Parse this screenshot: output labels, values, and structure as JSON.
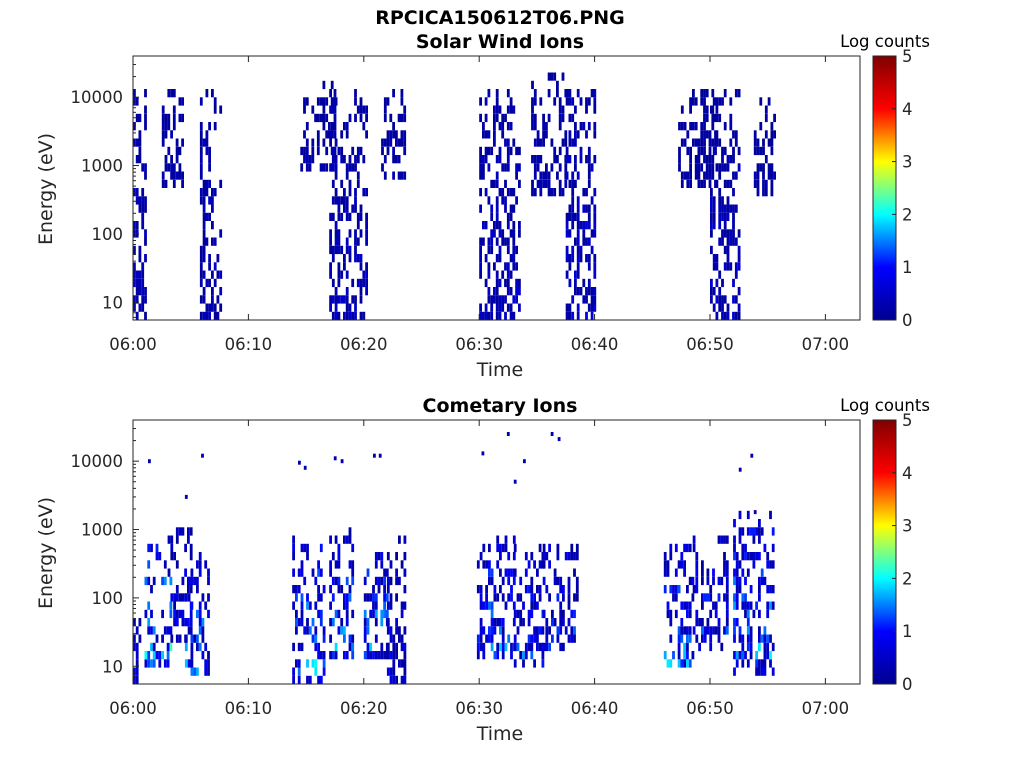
{
  "figure": {
    "title": "RPCICA150612T06.PNG"
  },
  "colormap": {
    "name": "jet",
    "stops": [
      "#00008f",
      "#0000ff",
      "#00ffff",
      "#ffff00",
      "#ff0000",
      "#800000"
    ]
  },
  "chart_data": [
    {
      "type": "heatmap",
      "title": "Solar Wind Ions",
      "xlabel": "Time",
      "ylabel": "Energy (eV)",
      "x_unit": "minutes after 06:00",
      "xlim": [
        0,
        63
      ],
      "xticks": [
        0,
        10,
        20,
        30,
        40,
        50,
        60
      ],
      "xtick_labels": [
        "06:00",
        "06:10",
        "06:20",
        "06:30",
        "06:40",
        "06:50",
        "07:00"
      ],
      "y_scale": "log",
      "ylim": [
        5.5,
        40000
      ],
      "yticks": [
        10,
        100,
        1000,
        10000
      ],
      "ytick_labels": [
        "10",
        "100",
        "1000",
        "10000"
      ],
      "colorbar": {
        "label": "Log counts",
        "range": [
          0,
          5
        ],
        "ticks": [
          0,
          1,
          2,
          3,
          4,
          5
        ],
        "tick_labels": [
          "0",
          "1",
          "2",
          "3",
          "4",
          "5"
        ]
      },
      "clusters": [
        {
          "t_start": 0.0,
          "t_end": 1.2,
          "e_min": 6,
          "e_max": 15000,
          "value_min": 0.1,
          "value_max": 0.5
        },
        {
          "t_start": 2.5,
          "t_end": 4.2,
          "e_min": 500,
          "e_max": 15000,
          "value_min": 0.1,
          "value_max": 0.4
        },
        {
          "t_start": 5.8,
          "t_end": 7.5,
          "e_min": 6,
          "e_max": 15000,
          "value_min": 0.1,
          "value_max": 0.6
        },
        {
          "t_start": 14.5,
          "t_end": 17.5,
          "e_min": 800,
          "e_max": 17000,
          "value_min": 0.1,
          "value_max": 0.3
        },
        {
          "t_start": 17.0,
          "t_end": 20.2,
          "e_min": 6,
          "e_max": 12000,
          "value_min": 0.1,
          "value_max": 0.6
        },
        {
          "t_start": 21.5,
          "t_end": 23.5,
          "e_min": 600,
          "e_max": 14000,
          "value_min": 0.1,
          "value_max": 0.4
        },
        {
          "t_start": 30.0,
          "t_end": 33.5,
          "e_min": 6,
          "e_max": 15000,
          "value_min": 0.1,
          "value_max": 0.7
        },
        {
          "t_start": 34.5,
          "t_end": 37.5,
          "e_min": 400,
          "e_max": 26000,
          "value_min": 0.1,
          "value_max": 0.4
        },
        {
          "t_start": 37.5,
          "t_end": 40.0,
          "e_min": 6,
          "e_max": 15000,
          "value_min": 0.1,
          "value_max": 0.8
        },
        {
          "t_start": 47.0,
          "t_end": 50.5,
          "e_min": 500,
          "e_max": 12000,
          "value_min": 0.1,
          "value_max": 0.3
        },
        {
          "t_start": 50.0,
          "t_end": 52.5,
          "e_min": 6,
          "e_max": 14000,
          "value_min": 0.1,
          "value_max": 0.7
        },
        {
          "t_start": 53.8,
          "t_end": 55.5,
          "e_min": 400,
          "e_max": 9000,
          "value_min": 0.1,
          "value_max": 0.3
        }
      ]
    },
    {
      "type": "heatmap",
      "title": "Cometary Ions",
      "xlabel": "Time",
      "ylabel": "Energy (eV)",
      "x_unit": "minutes after 06:00",
      "xlim": [
        0,
        63
      ],
      "xticks": [
        0,
        10,
        20,
        30,
        40,
        50,
        60
      ],
      "xtick_labels": [
        "06:00",
        "06:10",
        "06:20",
        "06:30",
        "06:40",
        "06:50",
        "07:00"
      ],
      "y_scale": "log",
      "ylim": [
        5.5,
        40000
      ],
      "yticks": [
        10,
        100,
        1000,
        10000
      ],
      "ytick_labels": [
        "10",
        "100",
        "1000",
        "10000"
      ],
      "colorbar": {
        "label": "Log counts",
        "range": [
          0,
          5
        ],
        "ticks": [
          0,
          1,
          2,
          3,
          4,
          5
        ],
        "tick_labels": [
          "0",
          "1",
          "2",
          "3",
          "4",
          "5"
        ]
      },
      "clusters": [
        {
          "t_start": 0.0,
          "t_end": 0.6,
          "e_min": 6,
          "e_max": 100,
          "value_min": 0.1,
          "value_max": 1.0
        },
        {
          "t_start": 1.0,
          "t_end": 3.2,
          "e_min": 10,
          "e_max": 700,
          "value_min": 0.3,
          "value_max": 2.6
        },
        {
          "t_start": 3.0,
          "t_end": 5.0,
          "e_min": 25,
          "e_max": 1200,
          "value_min": 0.1,
          "value_max": 1.2
        },
        {
          "t_start": 4.5,
          "t_end": 6.5,
          "e_min": 8,
          "e_max": 500,
          "value_min": 0.2,
          "value_max": 2.0
        },
        {
          "t_start": 13.8,
          "t_end": 16.5,
          "e_min": 6,
          "e_max": 900,
          "value_min": 0.3,
          "value_max": 2.2
        },
        {
          "t_start": 17.0,
          "t_end": 19.0,
          "e_min": 12,
          "e_max": 1000,
          "value_min": 0.2,
          "value_max": 2.0
        },
        {
          "t_start": 20.0,
          "t_end": 22.0,
          "e_min": 12,
          "e_max": 500,
          "value_min": 0.2,
          "value_max": 2.2
        },
        {
          "t_start": 22.0,
          "t_end": 23.5,
          "e_min": 6,
          "e_max": 900,
          "value_min": 0.1,
          "value_max": 1.0
        },
        {
          "t_start": 29.8,
          "t_end": 33.0,
          "e_min": 12,
          "e_max": 900,
          "value_min": 0.2,
          "value_max": 2.0
        },
        {
          "t_start": 33.0,
          "t_end": 35.5,
          "e_min": 10,
          "e_max": 600,
          "value_min": 0.2,
          "value_max": 1.8
        },
        {
          "t_start": 35.5,
          "t_end": 38.5,
          "e_min": 15,
          "e_max": 700,
          "value_min": 0.1,
          "value_max": 1.6
        },
        {
          "t_start": 46.0,
          "t_end": 48.5,
          "e_min": 10,
          "e_max": 600,
          "value_min": 0.2,
          "value_max": 2.0
        },
        {
          "t_start": 48.5,
          "t_end": 51.5,
          "e_min": 15,
          "e_max": 900,
          "value_min": 0.1,
          "value_max": 1.6
        },
        {
          "t_start": 52.0,
          "t_end": 55.5,
          "e_min": 8,
          "e_max": 1800,
          "value_min": 0.2,
          "value_max": 2.2
        }
      ],
      "sparse_high_energy_points": [
        {
          "t": 1.3,
          "e": 10000
        },
        {
          "t": 5.9,
          "e": 12000
        },
        {
          "t": 4.5,
          "e": 3000
        },
        {
          "t": 14.3,
          "e": 9500
        },
        {
          "t": 14.8,
          "e": 8000
        },
        {
          "t": 17.4,
          "e": 11000
        },
        {
          "t": 18.0,
          "e": 10000
        },
        {
          "t": 20.8,
          "e": 12000
        },
        {
          "t": 21.3,
          "e": 12000
        },
        {
          "t": 30.2,
          "e": 13000
        },
        {
          "t": 32.4,
          "e": 25000
        },
        {
          "t": 33.0,
          "e": 5000
        },
        {
          "t": 33.8,
          "e": 10000
        },
        {
          "t": 36.2,
          "e": 25000
        },
        {
          "t": 36.8,
          "e": 21000
        },
        {
          "t": 52.5,
          "e": 7500
        },
        {
          "t": 53.5,
          "e": 12000
        },
        {
          "t": 53.8,
          "e": 1800
        }
      ]
    }
  ]
}
